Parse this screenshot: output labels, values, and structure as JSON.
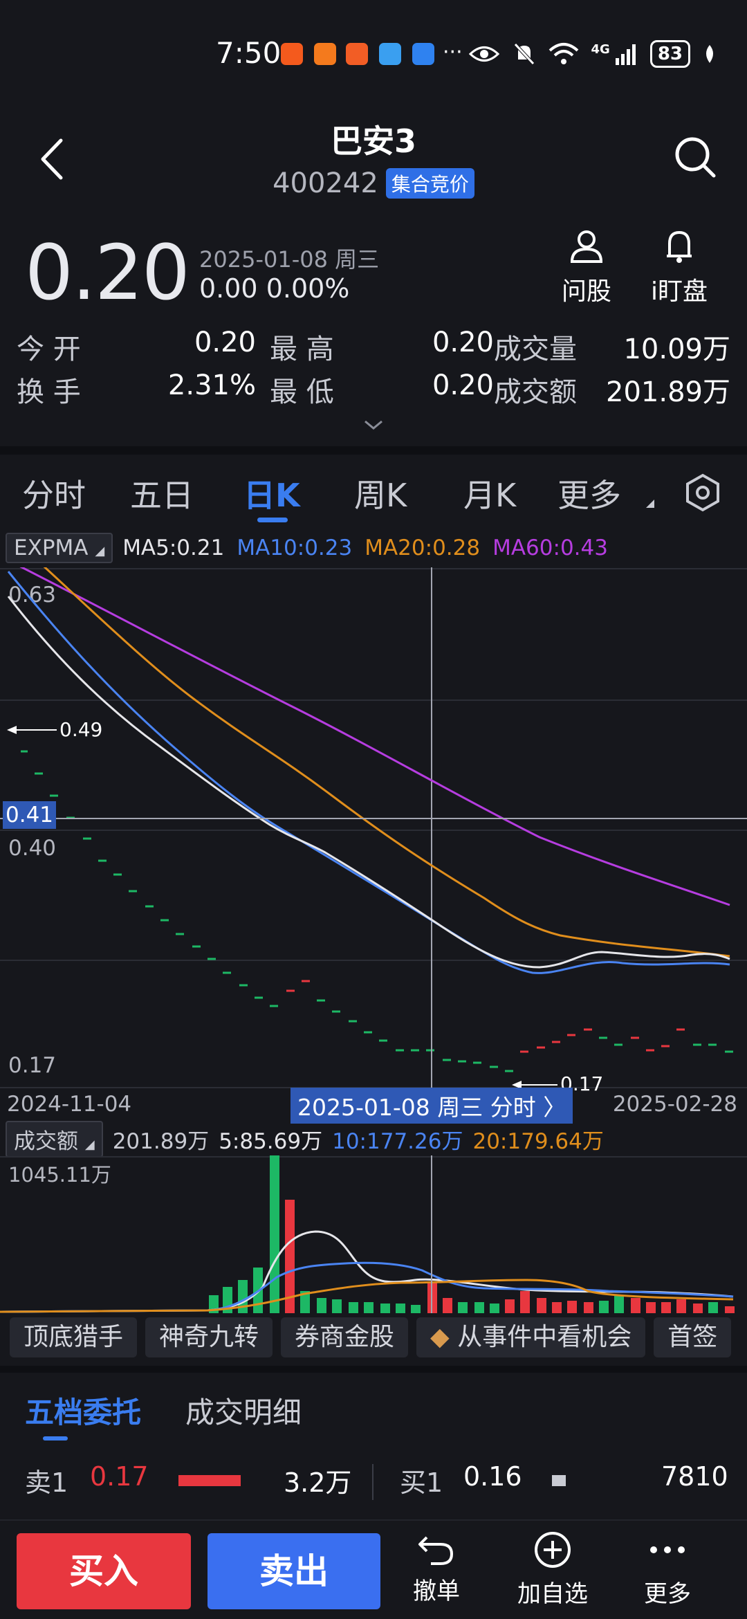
{
  "status_bar": {
    "time": "7:50",
    "dots": "···",
    "network": "4G",
    "battery": "83"
  },
  "header": {
    "name": "巴安3",
    "code": "400242",
    "tag": "集合竞价"
  },
  "quote": {
    "price": "0.20",
    "date": "2025-01-08 周三",
    "change": "0.00 0.00%",
    "ask_stock_label": "问股",
    "watch_label": "i盯盘"
  },
  "stats": {
    "open_label": "今 开",
    "open_value": "0.20",
    "high_label": "最 高",
    "high_value": "0.20",
    "volume_label": "成交量",
    "volume_value": "10.09万",
    "turnover_label": "换 手",
    "turnover_value": "2.31%",
    "low_label": "最 低",
    "low_value": "0.20",
    "amount_label": "成交额",
    "amount_value": "201.89万"
  },
  "tabs": {
    "items": [
      "分时",
      "五日",
      "日K",
      "周K",
      "月K",
      "更多"
    ],
    "active": "日K"
  },
  "indicators": {
    "selector": "EXPMA",
    "ma5": "MA5:0.21",
    "ma10": "MA10:0.23",
    "ma20": "MA20:0.28",
    "ma60": "MA60:0.43",
    "colors": {
      "ma5": "#e6e6ea",
      "ma10": "#4a84f2",
      "ma20": "#e08e1c",
      "ma60": "#b63de0"
    }
  },
  "chart_labels": {
    "y_top": "0.63",
    "y_mid": "0.40",
    "y_bottom": "0.17",
    "crosshair_value": "0.41",
    "high_marker": "0.49",
    "low_marker": "0.17",
    "date_start": "2024-11-04",
    "date_end": "2025-02-28",
    "date_cursor": "2025-01-08 周三 分时 〉"
  },
  "volume_indicator": {
    "selector": "成交额",
    "value": "201.89万",
    "ma5": "5:85.69万",
    "ma10": "10:177.26万",
    "ma20": "20:179.64万",
    "y_max": "1045.11万"
  },
  "chips": [
    "顶底猎手",
    "神奇九转",
    "券商金股",
    "从事件中看机会",
    "首签"
  ],
  "order_book": {
    "tab_active": "五档委托",
    "tab_other": "成交明细",
    "sell1_label": "卖1",
    "sell1_price": "0.17",
    "sell1_volume": "3.2万",
    "buy1_label": "买1",
    "buy1_price": "0.16",
    "buy1_volume": "7810"
  },
  "bottom_bar": {
    "buy": "买入",
    "sell": "卖出",
    "cancel": "撤单",
    "add_watch": "加自选",
    "more": "更多"
  },
  "chart_data": {
    "type": "line",
    "title": "",
    "x_range": [
      "2024-11-04",
      "2025-02-28"
    ],
    "ylim": [
      0.17,
      0.63
    ],
    "series": [
      {
        "name": "MA5",
        "values": [
          0.56,
          0.52,
          0.47,
          0.43,
          0.4,
          0.37,
          0.34,
          0.31,
          0.29,
          0.27,
          0.25,
          0.23,
          0.21,
          0.195,
          0.19,
          0.2,
          0.21,
          0.21,
          0.21,
          0.205
        ]
      },
      {
        "name": "MA10",
        "values": [
          0.59,
          0.55,
          0.5,
          0.46,
          0.43,
          0.4,
          0.37,
          0.34,
          0.32,
          0.3,
          0.28,
          0.26,
          0.24,
          0.22,
          0.2,
          0.2,
          0.21,
          0.21,
          0.21,
          0.21
        ]
      },
      {
        "name": "MA20",
        "values": [
          0.61,
          0.58,
          0.55,
          0.52,
          0.48,
          0.45,
          0.42,
          0.39,
          0.36,
          0.34,
          0.32,
          0.3,
          0.28,
          0.26,
          0.24,
          0.23,
          0.225,
          0.22,
          0.22,
          0.215
        ]
      },
      {
        "name": "MA60",
        "values": [
          0.63,
          0.62,
          0.6,
          0.58,
          0.56,
          0.54,
          0.52,
          0.5,
          0.48,
          0.46,
          0.44,
          0.42,
          0.4,
          0.38,
          0.36,
          0.35,
          0.34,
          0.33,
          0.32,
          0.31
        ]
      }
    ],
    "bars_volume_wan": [
      30,
      45,
      60,
      80,
      130,
      160,
      1045,
      740,
      70,
      40,
      30,
      25,
      90,
      40,
      35,
      60,
      45,
      35,
      30,
      45,
      60,
      55,
      40,
      30,
      25
    ]
  }
}
